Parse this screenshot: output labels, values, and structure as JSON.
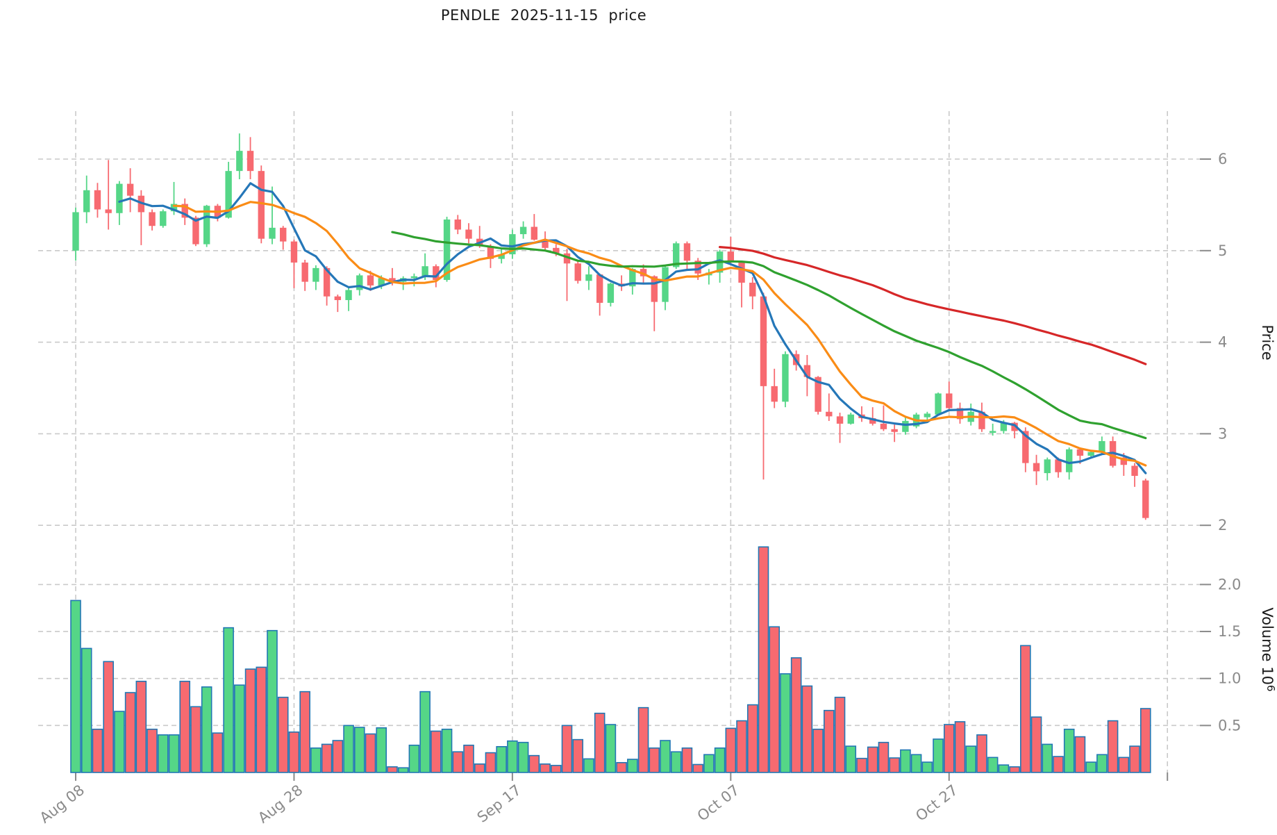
{
  "title": "PENDLE  2025-11-15  price",
  "colors": {
    "up": "#55D687",
    "down": "#F76A70",
    "volume_edge": "#2277B4",
    "ma_blue": "#2577B8",
    "ma_orange": "#FA8C16",
    "ma_green": "#2FA12F",
    "ma_red": "#D62728",
    "grid": "#C9C9C9",
    "tick_label": "#8A8A8A",
    "axis_title": "#1A1A1A"
  },
  "chart_data": {
    "type": "candlestick+volume",
    "title": "PENDLE  2025-11-15  price",
    "x_ticks": {
      "positions": [
        0,
        20,
        40,
        60,
        80,
        100
      ],
      "labels": [
        "Aug 08",
        "Aug 28",
        "Sep 17",
        "Oct 07",
        "Oct 27",
        ""
      ]
    },
    "price_axis": {
      "label": "Price",
      "ticks": [
        2,
        3,
        4,
        5,
        6
      ],
      "range": [
        1.8,
        6.55
      ]
    },
    "volume_axis": {
      "label": "Volume",
      "unit_base": "10",
      "unit_exp": "6",
      "ticks": [
        0.5,
        1.0,
        1.5,
        2.0
      ],
      "range": [
        0,
        2.45
      ]
    },
    "moving_averages": [
      {
        "name": "MA5",
        "window": 5,
        "color_key": "ma_blue"
      },
      {
        "name": "MA10",
        "window": 10,
        "color_key": "ma_orange"
      },
      {
        "name": "MA30",
        "window": 30,
        "color_key": "ma_green"
      },
      {
        "name": "MA60",
        "window": 60,
        "color_key": "ma_red"
      }
    ],
    "legend": "none",
    "grid": "dashed",
    "candles_ohlc": [
      [
        5.0,
        5.47,
        4.89,
        5.42
      ],
      [
        5.42,
        5.82,
        5.3,
        5.66
      ],
      [
        5.66,
        5.74,
        5.36,
        5.45
      ],
      [
        5.45,
        5.99,
        5.23,
        5.41
      ],
      [
        5.41,
        5.76,
        5.28,
        5.73
      ],
      [
        5.73,
        5.9,
        5.42,
        5.6
      ],
      [
        5.6,
        5.66,
        5.06,
        5.42
      ],
      [
        5.42,
        5.45,
        5.22,
        5.27
      ],
      [
        5.27,
        5.45,
        5.25,
        5.43
      ],
      [
        5.43,
        5.75,
        5.39,
        5.51
      ],
      [
        5.51,
        5.57,
        5.28,
        5.36
      ],
      [
        5.36,
        5.38,
        5.05,
        5.07
      ],
      [
        5.07,
        5.5,
        5.04,
        5.49
      ],
      [
        5.49,
        5.51,
        5.32,
        5.36
      ],
      [
        5.36,
        5.97,
        5.35,
        5.87
      ],
      [
        5.87,
        6.28,
        5.78,
        6.09
      ],
      [
        6.09,
        6.24,
        5.78,
        5.87
      ],
      [
        5.87,
        5.93,
        5.08,
        5.13
      ],
      [
        5.13,
        5.7,
        5.07,
        5.25
      ],
      [
        5.25,
        5.27,
        5.01,
        5.1
      ],
      [
        5.1,
        5.12,
        4.59,
        4.87
      ],
      [
        4.87,
        4.9,
        4.56,
        4.66
      ],
      [
        4.66,
        4.84,
        4.57,
        4.81
      ],
      [
        4.81,
        4.83,
        4.4,
        4.5
      ],
      [
        4.5,
        4.52,
        4.33,
        4.46
      ],
      [
        4.46,
        4.6,
        4.34,
        4.57
      ],
      [
        4.57,
        4.75,
        4.51,
        4.73
      ],
      [
        4.73,
        4.78,
        4.56,
        4.62
      ],
      [
        4.62,
        4.73,
        4.58,
        4.7
      ],
      [
        4.7,
        4.81,
        4.62,
        4.66
      ],
      [
        4.66,
        4.72,
        4.57,
        4.7
      ],
      [
        4.7,
        4.75,
        4.61,
        4.72
      ],
      [
        4.72,
        4.97,
        4.68,
        4.83
      ],
      [
        4.83,
        4.85,
        4.6,
        4.68
      ],
      [
        4.68,
        5.37,
        4.66,
        5.34
      ],
      [
        5.34,
        5.39,
        5.18,
        5.23
      ],
      [
        5.23,
        5.3,
        5.08,
        5.13
      ],
      [
        5.13,
        5.27,
        5.03,
        5.05
      ],
      [
        5.05,
        5.07,
        4.81,
        4.91
      ],
      [
        4.91,
        5.03,
        4.86,
        4.96
      ],
      [
        4.96,
        5.23,
        4.91,
        5.18
      ],
      [
        5.18,
        5.32,
        5.13,
        5.26
      ],
      [
        5.26,
        5.4,
        5.11,
        5.12
      ],
      [
        5.12,
        5.21,
        5.01,
        5.03
      ],
      [
        5.03,
        5.07,
        4.94,
        4.97
      ],
      [
        4.97,
        5.02,
        4.45,
        4.86
      ],
      [
        4.86,
        4.89,
        4.64,
        4.67
      ],
      [
        4.67,
        4.83,
        4.57,
        4.74
      ],
      [
        4.74,
        4.75,
        4.29,
        4.43
      ],
      [
        4.43,
        4.65,
        4.39,
        4.64
      ],
      [
        4.64,
        4.73,
        4.56,
        4.61
      ],
      [
        4.61,
        4.81,
        4.52,
        4.8
      ],
      [
        4.8,
        4.85,
        4.63,
        4.72
      ],
      [
        4.72,
        4.73,
        4.12,
        4.44
      ],
      [
        4.44,
        4.83,
        4.35,
        4.82
      ],
      [
        4.82,
        5.1,
        4.8,
        5.08
      ],
      [
        5.08,
        5.1,
        4.78,
        4.89
      ],
      [
        4.89,
        4.92,
        4.68,
        4.75
      ],
      [
        4.73,
        4.8,
        4.63,
        4.76
      ],
      [
        4.76,
        5.01,
        4.65,
        4.99
      ],
      [
        4.99,
        5.15,
        4.86,
        4.87
      ],
      [
        4.87,
        4.88,
        4.38,
        4.65
      ],
      [
        4.65,
        4.71,
        4.36,
        4.5
      ],
      [
        4.5,
        4.54,
        2.5,
        3.52
      ],
      [
        3.52,
        3.71,
        3.28,
        3.35
      ],
      [
        3.35,
        3.9,
        3.29,
        3.87
      ],
      [
        3.87,
        3.91,
        3.69,
        3.75
      ],
      [
        3.75,
        3.86,
        3.41,
        3.62
      ],
      [
        3.62,
        3.63,
        3.21,
        3.24
      ],
      [
        3.24,
        3.44,
        3.14,
        3.19
      ],
      [
        3.19,
        3.23,
        2.9,
        3.11
      ],
      [
        3.11,
        3.23,
        3.1,
        3.21
      ],
      [
        3.21,
        3.3,
        3.13,
        3.17
      ],
      [
        3.17,
        3.29,
        3.09,
        3.11
      ],
      [
        3.11,
        3.31,
        3.03,
        3.05
      ],
      [
        3.05,
        3.1,
        2.91,
        3.02
      ],
      [
        3.02,
        3.19,
        2.99,
        3.14
      ],
      [
        3.08,
        3.23,
        3.06,
        3.21
      ],
      [
        3.18,
        3.24,
        3.14,
        3.22
      ],
      [
        3.21,
        3.45,
        3.2,
        3.44
      ],
      [
        3.44,
        3.57,
        3.27,
        3.28
      ],
      [
        3.28,
        3.34,
        3.11,
        3.16
      ],
      [
        3.13,
        3.33,
        3.09,
        3.24
      ],
      [
        3.24,
        3.34,
        3.02,
        3.05
      ],
      [
        3.01,
        3.11,
        2.98,
        3.03
      ],
      [
        3.03,
        3.15,
        3.0,
        3.12
      ],
      [
        3.12,
        3.13,
        2.95,
        3.03
      ],
      [
        3.03,
        3.07,
        2.58,
        2.68
      ],
      [
        2.68,
        2.77,
        2.44,
        2.59
      ],
      [
        2.57,
        2.74,
        2.49,
        2.72
      ],
      [
        2.72,
        2.74,
        2.52,
        2.58
      ],
      [
        2.58,
        2.85,
        2.5,
        2.83
      ],
      [
        2.83,
        2.84,
        2.67,
        2.76
      ],
      [
        2.76,
        2.82,
        2.74,
        2.8
      ],
      [
        2.8,
        2.97,
        2.77,
        2.92
      ],
      [
        2.92,
        2.97,
        2.63,
        2.65
      ],
      [
        2.74,
        2.79,
        2.54,
        2.66
      ],
      [
        2.65,
        2.68,
        2.42,
        2.54
      ],
      [
        2.49,
        2.51,
        2.06,
        2.08
      ]
    ],
    "volumes_millions": [
      1.83,
      1.32,
      0.46,
      1.18,
      0.65,
      0.85,
      0.97,
      0.46,
      0.4,
      0.4,
      0.97,
      0.7,
      0.91,
      0.42,
      1.54,
      0.93,
      1.1,
      1.12,
      1.51,
      0.8,
      0.43,
      0.86,
      0.26,
      0.3,
      0.34,
      0.5,
      0.48,
      0.41,
      0.475,
      0.06,
      0.05,
      0.29,
      0.86,
      0.44,
      0.46,
      0.22,
      0.29,
      0.09,
      0.21,
      0.275,
      0.335,
      0.32,
      0.18,
      0.09,
      0.075,
      0.5,
      0.35,
      0.145,
      0.63,
      0.51,
      0.105,
      0.14,
      0.69,
      0.26,
      0.34,
      0.22,
      0.26,
      0.085,
      0.19,
      0.26,
      0.47,
      0.55,
      0.72,
      2.4,
      1.55,
      1.05,
      1.22,
      0.92,
      0.46,
      0.66,
      0.8,
      0.28,
      0.15,
      0.27,
      0.32,
      0.155,
      0.24,
      0.19,
      0.11,
      0.355,
      0.51,
      0.54,
      0.28,
      0.4,
      0.16,
      0.08,
      0.06,
      1.35,
      0.59,
      0.3,
      0.17,
      0.46,
      0.38,
      0.11,
      0.19,
      0.55,
      0.16,
      0.28,
      0.68
    ]
  }
}
